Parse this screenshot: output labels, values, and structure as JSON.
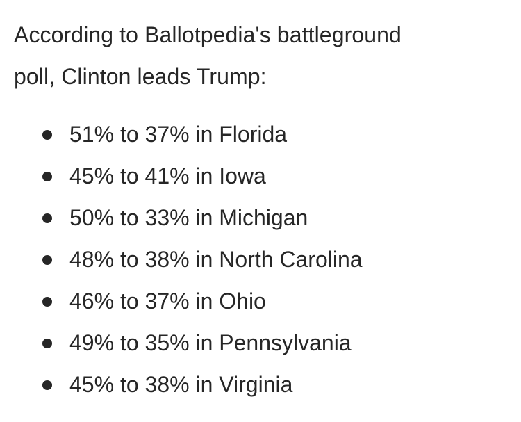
{
  "intro": {
    "line1": "According to Ballotpedia's battleground",
    "line2": "poll, Clinton leads Trump:"
  },
  "results": [
    {
      "text": "51% to 37% in Florida"
    },
    {
      "text": "45% to 41% in Iowa"
    },
    {
      "text": "50% to 33% in Michigan"
    },
    {
      "text": "48% to 38% in North Carolina"
    },
    {
      "text": "46% to 37% in Ohio"
    },
    {
      "text": "49% to 35% in Pennsylvania"
    },
    {
      "text": "45% to 38% in Virginia"
    }
  ]
}
